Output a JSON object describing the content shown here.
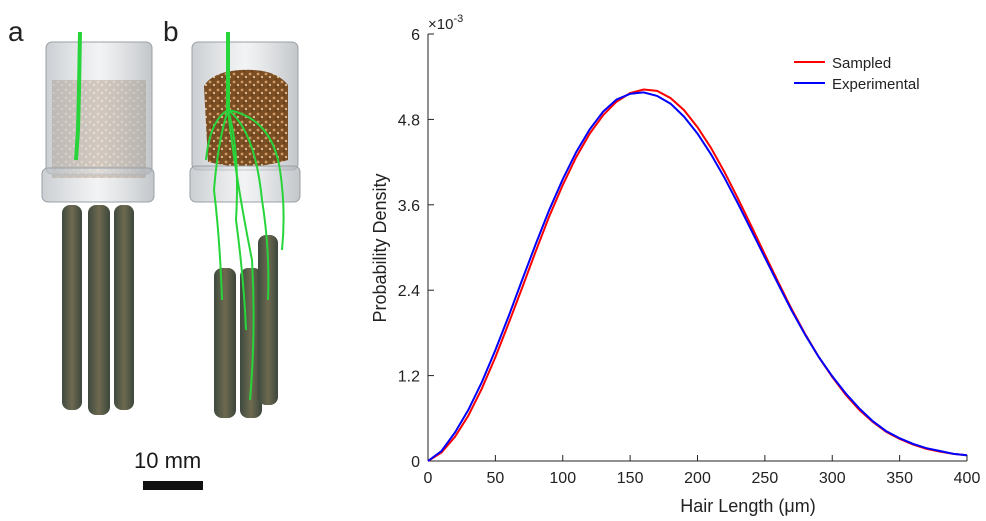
{
  "panels": {
    "a_label": "a",
    "b_label": "b",
    "scale_bar_label": "10 mm"
  },
  "colors": {
    "sampled": "#ff0000",
    "experimental": "#0000ff",
    "root": "#27d43a",
    "soil": "#8a5a2b",
    "container": "#c9cdd1"
  },
  "chart_data": {
    "type": "line",
    "xlabel": "Hair Length (μm)",
    "ylabel": "Probability Density",
    "exponent_label": "×10",
    "exponent_power": "-3",
    "xlim": [
      0,
      400
    ],
    "ylim": [
      0,
      6
    ],
    "xticks": [
      0,
      50,
      100,
      150,
      200,
      250,
      300,
      350,
      400
    ],
    "yticks": [
      0,
      1.2,
      2.4,
      3.6,
      4.8,
      6
    ],
    "ytick_labels": [
      "0",
      "1.2",
      "2.4",
      "3.6",
      "4.8",
      "6"
    ],
    "legend_position": "top-right",
    "x": [
      0,
      10,
      20,
      30,
      40,
      50,
      60,
      70,
      80,
      90,
      100,
      110,
      120,
      130,
      140,
      150,
      160,
      170,
      180,
      190,
      200,
      210,
      220,
      230,
      240,
      250,
      260,
      270,
      280,
      290,
      300,
      310,
      320,
      330,
      340,
      350,
      360,
      370,
      380,
      390,
      400
    ],
    "series": [
      {
        "name": "Sampled",
        "color": "#ff0000",
        "values": [
          0,
          0.12,
          0.34,
          0.64,
          1.02,
          1.46,
          1.94,
          2.44,
          2.95,
          3.44,
          3.88,
          4.27,
          4.6,
          4.86,
          5.05,
          5.17,
          5.22,
          5.2,
          5.1,
          4.93,
          4.69,
          4.4,
          4.06,
          3.69,
          3.3,
          2.9,
          2.51,
          2.13,
          1.78,
          1.46,
          1.18,
          0.93,
          0.72,
          0.55,
          0.41,
          0.31,
          0.23,
          0.17,
          0.13,
          0.1,
          0.08
        ]
      },
      {
        "name": "Experimental",
        "color": "#0000ff",
        "values": [
          0,
          0.14,
          0.4,
          0.72,
          1.11,
          1.56,
          2.04,
          2.55,
          3.05,
          3.53,
          3.96,
          4.34,
          4.66,
          4.91,
          5.08,
          5.16,
          5.18,
          5.13,
          5.02,
          4.84,
          4.6,
          4.31,
          3.98,
          3.62,
          3.24,
          2.86,
          2.48,
          2.11,
          1.77,
          1.46,
          1.19,
          0.95,
          0.74,
          0.56,
          0.42,
          0.32,
          0.24,
          0.18,
          0.14,
          0.1,
          0.08
        ]
      }
    ]
  }
}
